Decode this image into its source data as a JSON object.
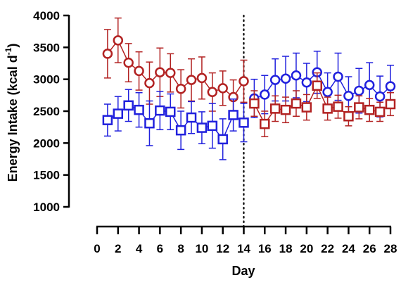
{
  "chart_data": {
    "type": "scatter",
    "xlabel": "Day",
    "ylabel": {
      "base": "Energy Intake (kcal d",
      "sup": "-1",
      "close": ")"
    },
    "xlim": [
      0,
      28
    ],
    "ylim": [
      1000,
      4000
    ],
    "x_ticks": [
      "0",
      "2",
      "4",
      "6",
      "8",
      "10",
      "12",
      "14",
      "16",
      "18",
      "20",
      "22",
      "24",
      "26",
      "28"
    ],
    "y_ticks": [
      "1000",
      "1500",
      "2000",
      "2500",
      "3000",
      "3500",
      "4000"
    ],
    "vline_x": 14,
    "grid": false,
    "series": [
      {
        "segment": "days 1-14",
        "marker": "circle",
        "color": "#b22222",
        "x": [
          1,
          2,
          3,
          4,
          5,
          6,
          7,
          8,
          9,
          10,
          11,
          12,
          13,
          14
        ],
        "y": [
          3400,
          3610,
          3260,
          3130,
          2940,
          3110,
          3100,
          2850,
          2990,
          3020,
          2800,
          2860,
          2720,
          2970
        ],
        "err": [
          380,
          350,
          300,
          300,
          330,
          380,
          300,
          300,
          330,
          330,
          300,
          270,
          270,
          330
        ]
      },
      {
        "segment": "days 1-14",
        "marker": "square",
        "color": "#2020dd",
        "x": [
          1,
          2,
          3,
          4,
          5,
          6,
          7,
          8,
          9,
          10,
          11,
          12,
          13,
          14
        ],
        "y": [
          2360,
          2460,
          2590,
          2520,
          2310,
          2510,
          2490,
          2200,
          2400,
          2240,
          2270,
          2060,
          2440,
          2320
        ],
        "err": [
          250,
          270,
          250,
          270,
          350,
          300,
          280,
          300,
          250,
          250,
          350,
          320,
          250,
          300
        ]
      },
      {
        "segment": "days 15-28",
        "marker": "circle",
        "color": "#2020dd",
        "x": [
          15,
          16,
          17,
          18,
          19,
          20,
          21,
          22,
          23,
          24,
          25,
          26,
          27,
          28
        ],
        "y": [
          2700,
          2760,
          2990,
          3010,
          3060,
          2950,
          3110,
          2800,
          3040,
          2740,
          2820,
          2910,
          2730,
          2890
        ],
        "err": [
          300,
          300,
          330,
          350,
          350,
          300,
          330,
          300,
          370,
          300,
          350,
          350,
          320,
          330
        ]
      },
      {
        "segment": "days 15-28",
        "marker": "square",
        "color": "#b22222",
        "x": [
          15,
          16,
          17,
          18,
          19,
          20,
          21,
          22,
          23,
          24,
          25,
          26,
          27,
          28
        ],
        "y": [
          2620,
          2300,
          2540,
          2520,
          2620,
          2560,
          2900,
          2540,
          2570,
          2420,
          2560,
          2520,
          2490,
          2610
        ],
        "err": [
          200,
          200,
          200,
          200,
          200,
          200,
          200,
          180,
          180,
          150,
          180,
          180,
          150,
          180
        ]
      }
    ]
  }
}
